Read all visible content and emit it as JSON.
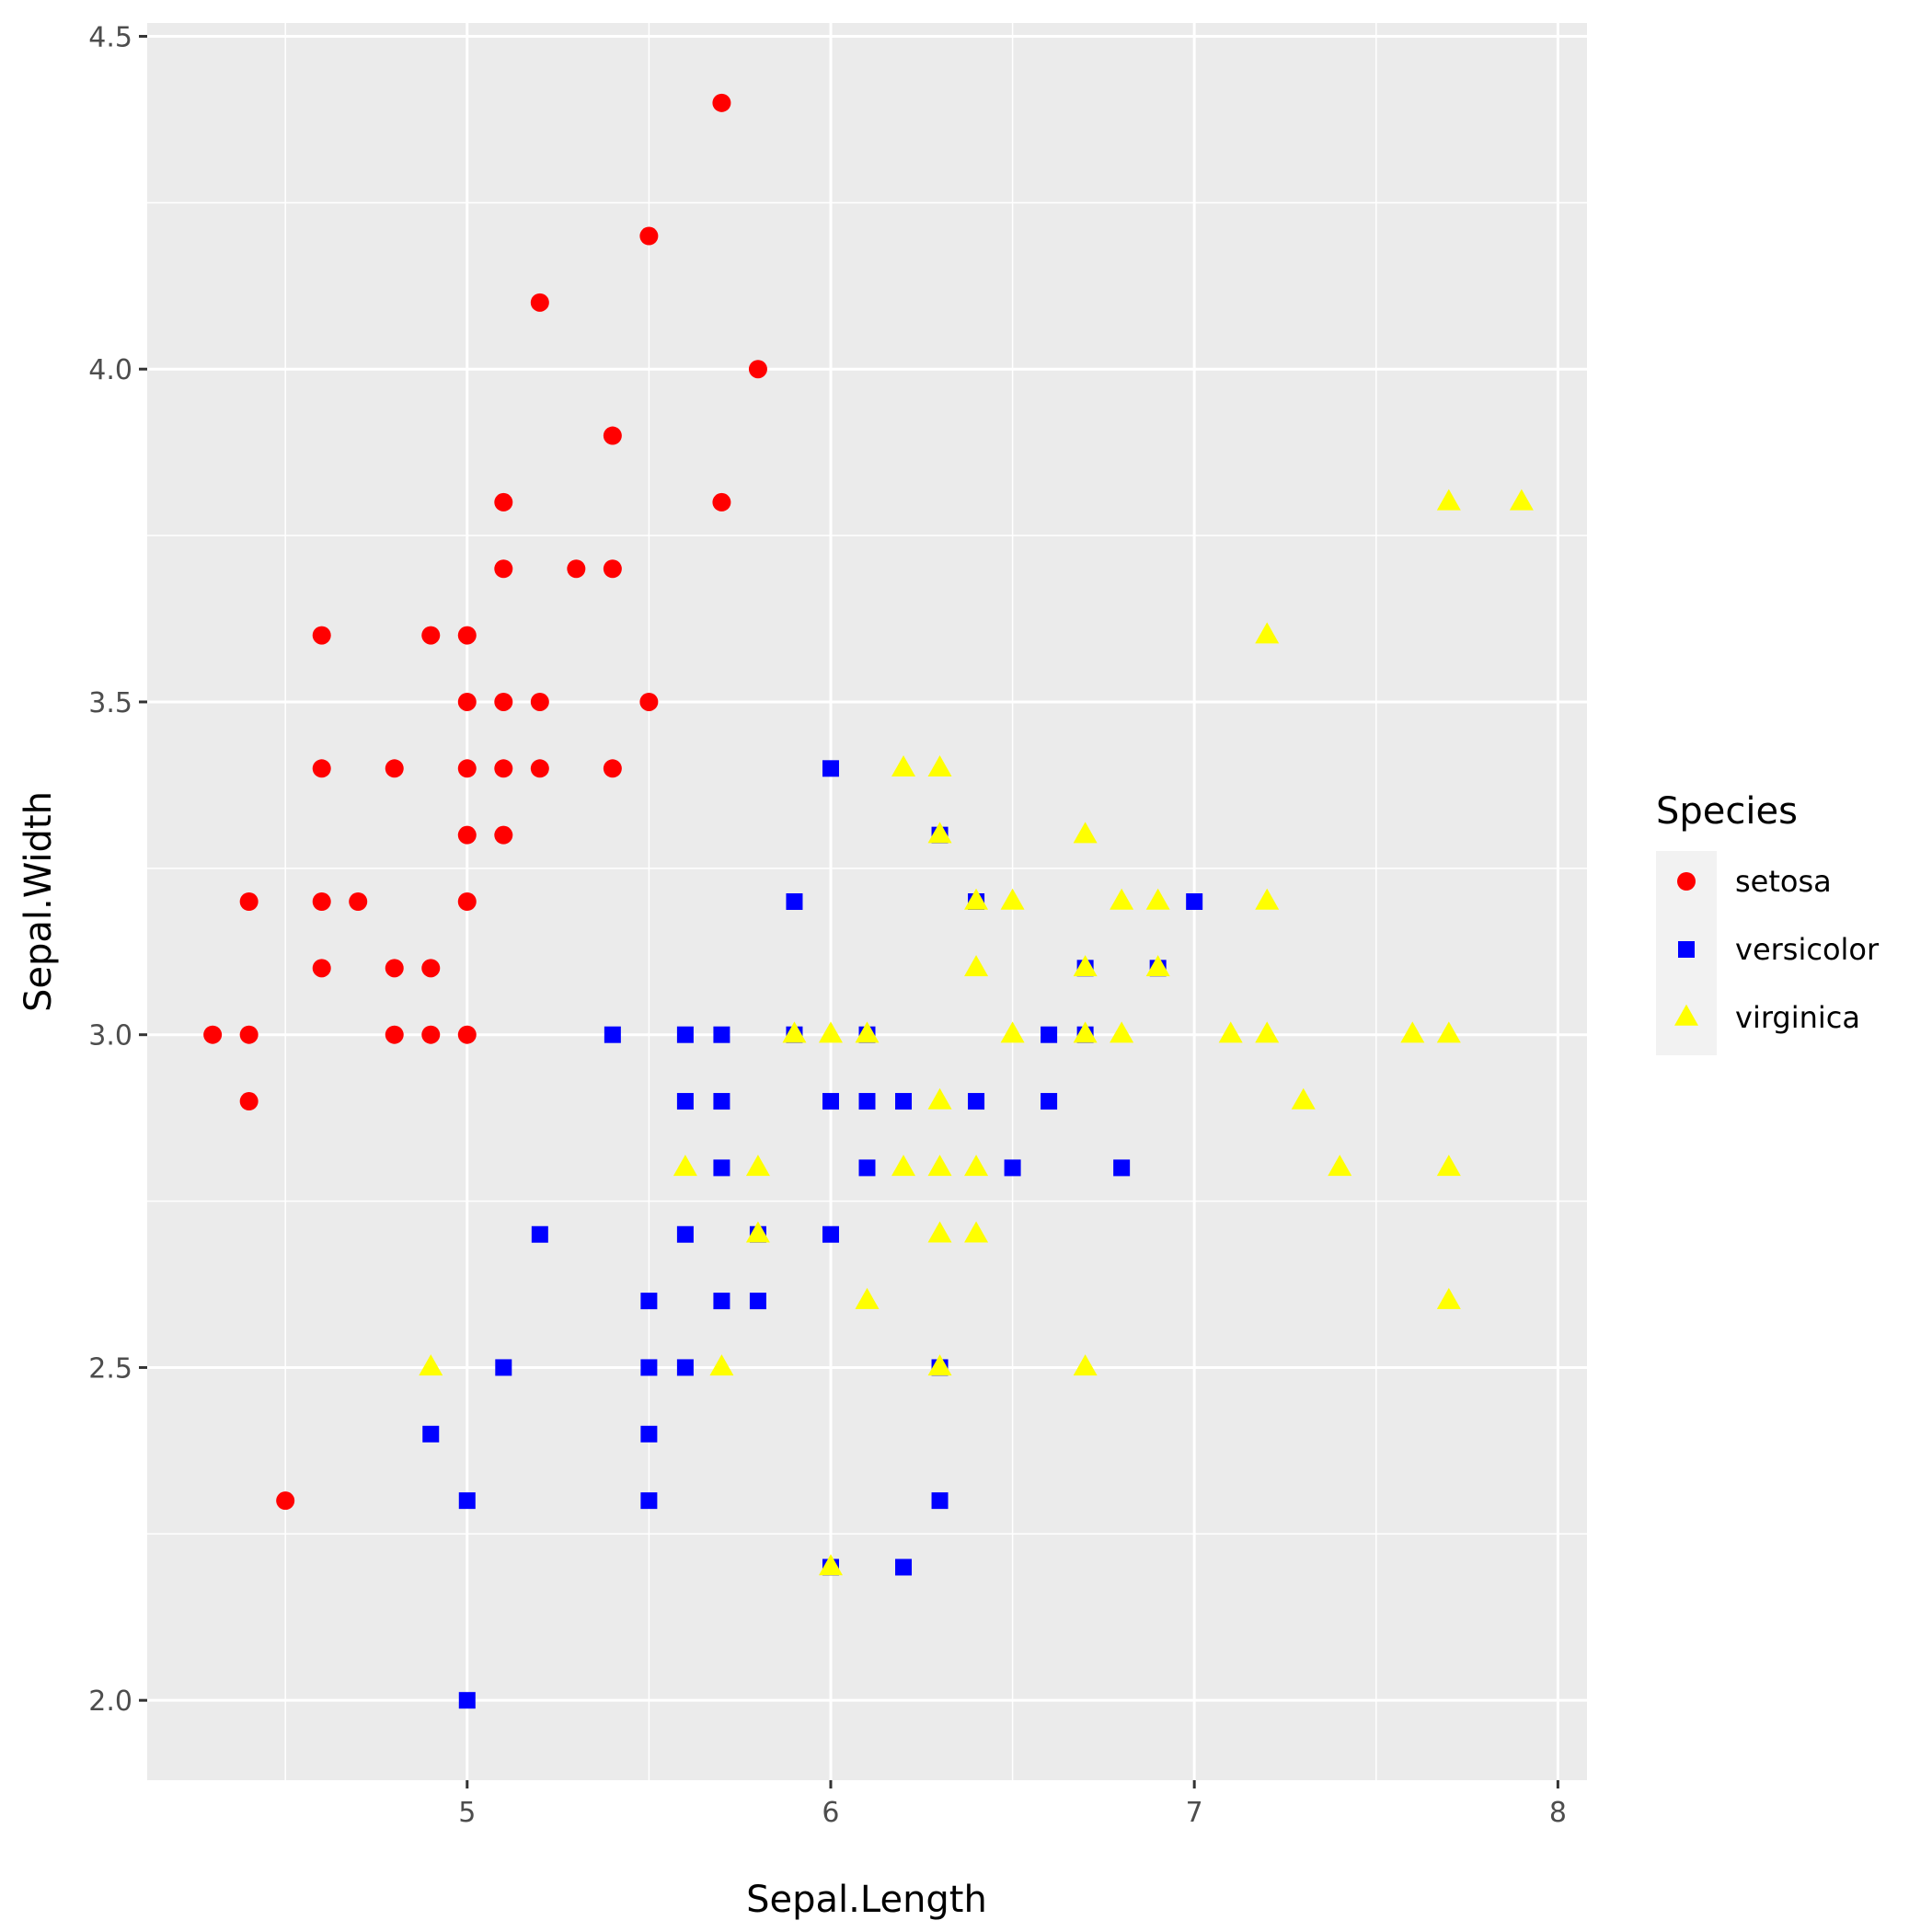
{
  "chart_data": {
    "type": "scatter",
    "title": "",
    "xlabel": "Sepal.Length",
    "ylabel": "Sepal.Width",
    "xlim": [
      4.12,
      8.08
    ],
    "ylim": [
      1.88,
      4.52
    ],
    "xticks": [
      5,
      6,
      7,
      8
    ],
    "yticks": [
      2.0,
      2.5,
      3.0,
      3.5,
      4.0,
      4.5
    ],
    "ytick_labels": [
      "2.0",
      "2.5",
      "3.0",
      "3.5",
      "4.0",
      "4.5"
    ],
    "grid": true,
    "legend": {
      "title": "Species",
      "position": "right"
    },
    "series": [
      {
        "name": "setosa",
        "color": "#ff0000",
        "shape": "circle",
        "points": [
          [
            5.7,
            4.4
          ],
          [
            5.5,
            4.2
          ],
          [
            5.2,
            4.1
          ],
          [
            5.8,
            4.0
          ],
          [
            5.4,
            3.9
          ],
          [
            5.1,
            3.8
          ],
          [
            5.7,
            3.8
          ],
          [
            5.1,
            3.7
          ],
          [
            5.3,
            3.7
          ],
          [
            5.4,
            3.7
          ],
          [
            4.6,
            3.6
          ],
          [
            4.9,
            3.6
          ],
          [
            5.0,
            3.6
          ],
          [
            5.0,
            3.5
          ],
          [
            5.1,
            3.5
          ],
          [
            5.2,
            3.5
          ],
          [
            5.5,
            3.5
          ],
          [
            4.6,
            3.4
          ],
          [
            4.8,
            3.4
          ],
          [
            5.0,
            3.4
          ],
          [
            5.1,
            3.4
          ],
          [
            5.2,
            3.4
          ],
          [
            5.4,
            3.4
          ],
          [
            5.0,
            3.3
          ],
          [
            5.1,
            3.3
          ],
          [
            4.4,
            3.2
          ],
          [
            4.6,
            3.2
          ],
          [
            4.7,
            3.2
          ],
          [
            5.0,
            3.2
          ],
          [
            4.6,
            3.1
          ],
          [
            4.8,
            3.1
          ],
          [
            4.9,
            3.1
          ],
          [
            4.3,
            3.0
          ],
          [
            4.4,
            3.0
          ],
          [
            4.8,
            3.0
          ],
          [
            4.9,
            3.0
          ],
          [
            5.0,
            3.0
          ],
          [
            4.4,
            2.9
          ],
          [
            4.5,
            2.3
          ]
        ]
      },
      {
        "name": "versicolor",
        "color": "#0000ff",
        "shape": "square",
        "points": [
          [
            6.0,
            3.4
          ],
          [
            6.3,
            3.3
          ],
          [
            5.9,
            3.2
          ],
          [
            6.4,
            3.2
          ],
          [
            7.0,
            3.2
          ],
          [
            6.7,
            3.1
          ],
          [
            6.9,
            3.1
          ],
          [
            5.4,
            3.0
          ],
          [
            5.6,
            3.0
          ],
          [
            5.7,
            3.0
          ],
          [
            5.9,
            3.0
          ],
          [
            6.1,
            3.0
          ],
          [
            6.6,
            3.0
          ],
          [
            6.7,
            3.0
          ],
          [
            5.6,
            2.9
          ],
          [
            5.7,
            2.9
          ],
          [
            6.0,
            2.9
          ],
          [
            6.1,
            2.9
          ],
          [
            6.2,
            2.9
          ],
          [
            6.4,
            2.9
          ],
          [
            6.6,
            2.9
          ],
          [
            5.7,
            2.8
          ],
          [
            6.1,
            2.8
          ],
          [
            6.5,
            2.8
          ],
          [
            6.8,
            2.8
          ],
          [
            5.2,
            2.7
          ],
          [
            5.6,
            2.7
          ],
          [
            5.8,
            2.7
          ],
          [
            6.0,
            2.7
          ],
          [
            5.5,
            2.6
          ],
          [
            5.7,
            2.6
          ],
          [
            5.8,
            2.6
          ],
          [
            5.1,
            2.5
          ],
          [
            5.5,
            2.5
          ],
          [
            5.6,
            2.5
          ],
          [
            6.3,
            2.5
          ],
          [
            4.9,
            2.4
          ],
          [
            5.5,
            2.4
          ],
          [
            5.0,
            2.3
          ],
          [
            5.5,
            2.3
          ],
          [
            6.3,
            2.3
          ],
          [
            6.0,
            2.2
          ],
          [
            6.2,
            2.2
          ],
          [
            5.0,
            2.0
          ]
        ]
      },
      {
        "name": "virginica",
        "color": "#ffff00",
        "shape": "triangle",
        "points": [
          [
            7.7,
            3.8
          ],
          [
            7.9,
            3.8
          ],
          [
            7.2,
            3.6
          ],
          [
            6.2,
            3.4
          ],
          [
            6.3,
            3.4
          ],
          [
            6.3,
            3.3
          ],
          [
            6.7,
            3.3
          ],
          [
            6.4,
            3.2
          ],
          [
            6.5,
            3.2
          ],
          [
            6.8,
            3.2
          ],
          [
            6.9,
            3.2
          ],
          [
            7.2,
            3.2
          ],
          [
            6.4,
            3.1
          ],
          [
            6.7,
            3.1
          ],
          [
            6.9,
            3.1
          ],
          [
            5.9,
            3.0
          ],
          [
            6.0,
            3.0
          ],
          [
            6.1,
            3.0
          ],
          [
            6.5,
            3.0
          ],
          [
            6.7,
            3.0
          ],
          [
            6.8,
            3.0
          ],
          [
            7.1,
            3.0
          ],
          [
            7.2,
            3.0
          ],
          [
            7.6,
            3.0
          ],
          [
            7.7,
            3.0
          ],
          [
            6.3,
            2.9
          ],
          [
            7.3,
            2.9
          ],
          [
            5.6,
            2.8
          ],
          [
            5.8,
            2.8
          ],
          [
            6.2,
            2.8
          ],
          [
            6.3,
            2.8
          ],
          [
            6.4,
            2.8
          ],
          [
            7.4,
            2.8
          ],
          [
            7.7,
            2.8
          ],
          [
            5.8,
            2.7
          ],
          [
            6.3,
            2.7
          ],
          [
            6.4,
            2.7
          ],
          [
            6.1,
            2.6
          ],
          [
            7.7,
            2.6
          ],
          [
            4.9,
            2.5
          ],
          [
            5.7,
            2.5
          ],
          [
            6.3,
            2.5
          ],
          [
            6.7,
            2.5
          ],
          [
            6.0,
            2.2
          ]
        ]
      }
    ]
  }
}
